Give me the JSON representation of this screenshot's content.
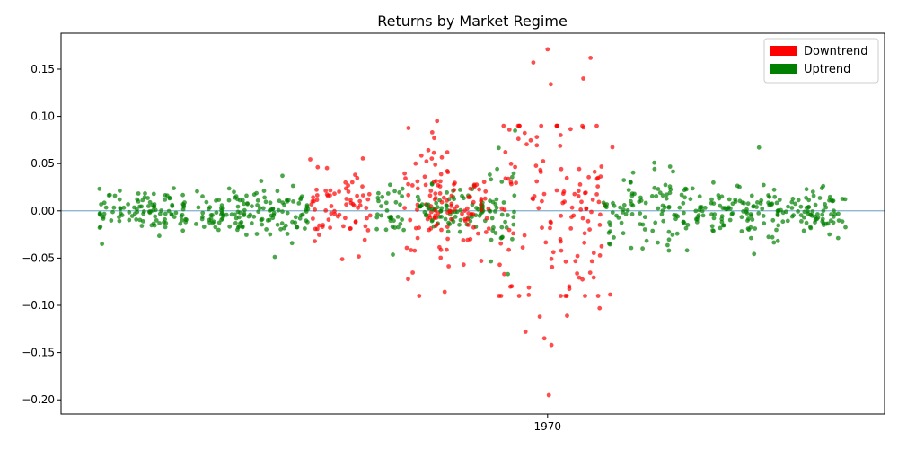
{
  "chart_data": {
    "type": "scatter",
    "title": "Returns by Market Regime",
    "xlabel": "",
    "ylabel": "",
    "x_tick_labels": [
      "1970"
    ],
    "ylim": [
      -0.215,
      0.188
    ],
    "y_ticks": [
      -0.2,
      -0.15,
      -0.1,
      -0.05,
      0.0,
      0.05,
      0.1,
      0.15
    ],
    "y_tick_labels": [
      "−0.20",
      "−0.15",
      "−0.10",
      "−0.05",
      "0.00",
      "0.05",
      "0.10",
      "0.15"
    ],
    "reference_line_y": 0,
    "legend": {
      "placement": "top-right",
      "entries": [
        {
          "label": "Downtrend",
          "color": "#ff0000"
        },
        {
          "label": "Uptrend",
          "color": "#008000"
        }
      ]
    },
    "colors": {
      "Downtrend": "#ff0000",
      "Uptrend": "#008000",
      "reference_line": "#4c8fb8"
    },
    "segments": [
      {
        "regime": "Uptrend",
        "x_range": [
          0,
          270
        ],
        "spread": 0.011
      },
      {
        "regime": "Uptrend",
        "x_range": [
          270,
          325
        ],
        "spread": 0.014
      },
      {
        "regime": "Downtrend",
        "x_range": [
          325,
          420
        ],
        "spread": 0.02
      },
      {
        "regime": "Uptrend",
        "x_range": [
          425,
          470
        ],
        "spread": 0.016
      },
      {
        "regime": "Downtrend",
        "x_range": [
          470,
          540
        ],
        "spread": 0.04
      },
      {
        "regime": "Uptrend",
        "x_range": [
          490,
          610
        ],
        "spread": 0.012
      },
      {
        "regime": "Downtrend",
        "x_range": [
          505,
          600
        ],
        "spread": 0.02
      },
      {
        "regime": "Uptrend",
        "x_range": [
          600,
          640
        ],
        "spread": 0.028
      },
      {
        "regime": "Downtrend",
        "x_range": [
          615,
          790
        ],
        "spread": 0.06
      },
      {
        "regime": "Uptrend",
        "x_range": [
          775,
          905
        ],
        "spread": 0.02
      },
      {
        "regime": "Uptrend",
        "x_range": [
          905,
          1050
        ],
        "spread": 0.016
      },
      {
        "regime": "Uptrend",
        "x_range": [
          1050,
          1150
        ],
        "spread": 0.011
      }
    ],
    "x_domain": [
      0,
      1150
    ],
    "x_tick_position": 690,
    "extreme_points": [
      {
        "regime": "Downtrend",
        "x": 690,
        "y": 0.171
      },
      {
        "regime": "Downtrend",
        "x": 668,
        "y": 0.157
      },
      {
        "regime": "Downtrend",
        "x": 756,
        "y": 0.162
      },
      {
        "regime": "Downtrend",
        "x": 745,
        "y": 0.14
      },
      {
        "regime": "Downtrend",
        "x": 695,
        "y": 0.134
      },
      {
        "regime": "Downtrend",
        "x": 692,
        "y": -0.195
      },
      {
        "regime": "Downtrend",
        "x": 696,
        "y": -0.142
      },
      {
        "regime": "Downtrend",
        "x": 685,
        "y": -0.135
      },
      {
        "regime": "Downtrend",
        "x": 656,
        "y": -0.128
      },
      {
        "regime": "Downtrend",
        "x": 678,
        "y": -0.112
      },
      {
        "regime": "Downtrend",
        "x": 720,
        "y": -0.111
      },
      {
        "regime": "Downtrend",
        "x": 770,
        "y": -0.103
      },
      {
        "regime": "Downtrend",
        "x": 520,
        "y": 0.095
      },
      {
        "regime": "Uptrend",
        "x": 640,
        "y": 0.085
      },
      {
        "regime": "Uptrend",
        "x": 1015,
        "y": 0.067
      },
      {
        "regime": "Uptrend",
        "x": 5,
        "y": -0.035
      }
    ]
  }
}
